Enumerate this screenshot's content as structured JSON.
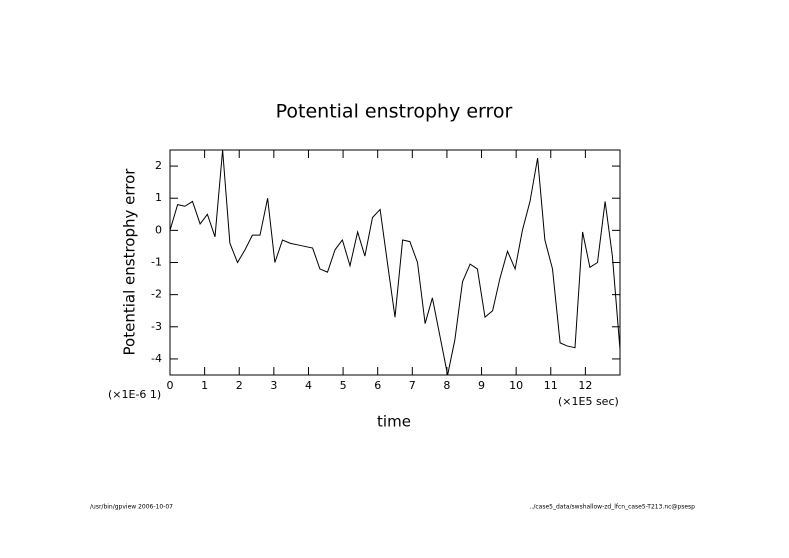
{
  "chart_data": {
    "type": "line",
    "title": "Potential enstrophy error",
    "y_label": "Potential enstrophy error",
    "x_label": "time",
    "y_scale_note": "(×1E-6 1)",
    "x_scale_note": "(×1E5 sec)",
    "footer_left": "/usr/bin/gpview  2006-10-07",
    "footer_right": "../case5_data/swshallow-zd_lfcn_case5-T213.nc@psesp",
    "x": [
      0,
      0.22,
      0.43,
      0.65,
      0.87,
      1.08,
      1.3,
      1.52,
      1.73,
      1.95,
      2.17,
      2.38,
      2.6,
      2.82,
      3.03,
      3.25,
      3.47,
      3.68,
      3.9,
      4.12,
      4.33,
      4.55,
      4.77,
      4.98,
      5.2,
      5.42,
      5.63,
      5.85,
      6.07,
      6.28,
      6.5,
      6.72,
      6.93,
      7.15,
      7.37,
      7.58,
      7.8,
      8.02,
      8.23,
      8.45,
      8.67,
      8.88,
      9.1,
      9.32,
      9.53,
      9.75,
      9.97,
      10.18,
      10.4,
      10.62,
      10.83,
      11.05,
      11.27,
      11.48,
      11.7,
      11.92,
      12.13,
      12.35,
      12.57,
      12.78,
      13.0
    ],
    "series": [
      {
        "color": "#000000",
        "values": [
          0,
          0.8,
          0.75,
          0.9,
          0.2,
          0.5,
          -0.2,
          2.5,
          -0.4,
          -1.0,
          -0.6,
          -0.15,
          -0.15,
          1.0,
          -1.0,
          -0.3,
          -0.4,
          -0.45,
          -0.5,
          -0.55,
          -1.2,
          -1.3,
          -0.6,
          -0.3,
          -1.1,
          -0.05,
          -0.8,
          0.4,
          0.65,
          -1.0,
          -2.7,
          -0.3,
          -0.35,
          -1.0,
          -2.9,
          -2.1,
          -3.3,
          -4.5,
          -3.4,
          -1.6,
          -1.05,
          -1.2,
          -2.7,
          -2.5,
          -1.5,
          -0.65,
          -1.2,
          0.0,
          0.9,
          2.25,
          -0.3,
          -1.2,
          -3.5,
          -3.6,
          -3.65,
          -0.05,
          -1.15,
          -1.0,
          0.9,
          -0.8,
          -3.7
        ]
      }
    ],
    "xlim": [
      0,
      13
    ],
    "ylim": [
      -4.5,
      2.5
    ],
    "xticks": [
      0,
      1,
      2,
      3,
      4,
      5,
      6,
      7,
      8,
      9,
      10,
      11,
      12
    ],
    "yticks": [
      -4,
      -3,
      -2,
      -1,
      0,
      1,
      2
    ]
  }
}
